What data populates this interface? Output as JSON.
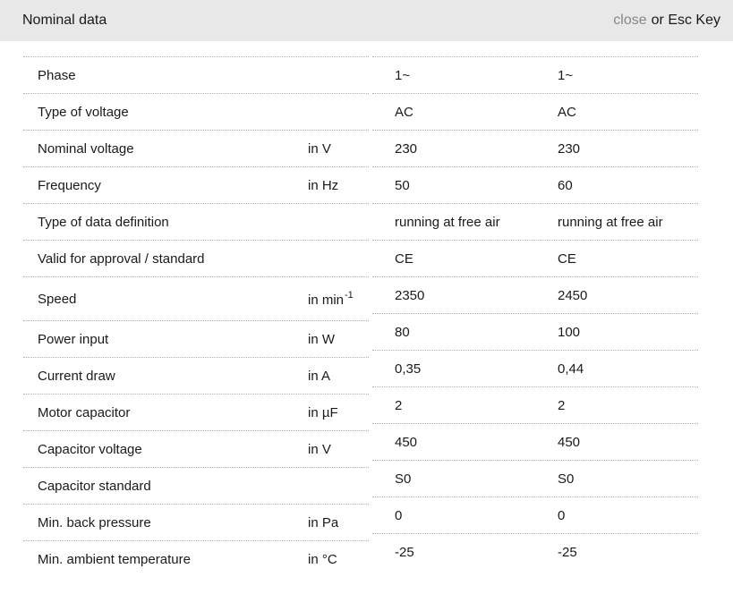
{
  "header": {
    "title": "Nominal data",
    "close_label": "close",
    "esc_text": "or Esc Key"
  },
  "colors": {
    "header_bg": "#e8e8e8",
    "divider": "#b0b0b0",
    "text": "#1a1a1a",
    "close_link": "#878787"
  },
  "table": {
    "rows": [
      {
        "label": "Phase",
        "unit": "",
        "unit_sup": "",
        "values": [
          "1~",
          "1~"
        ]
      },
      {
        "label": "Type of voltage",
        "unit": "",
        "unit_sup": "",
        "values": [
          "AC",
          "AC"
        ]
      },
      {
        "label": "Nominal voltage",
        "unit": "in V",
        "unit_sup": "",
        "values": [
          "230",
          "230"
        ]
      },
      {
        "label": "Frequency",
        "unit": "in Hz",
        "unit_sup": "",
        "values": [
          "50",
          "60"
        ]
      },
      {
        "label": "Type of data definition",
        "unit": "",
        "unit_sup": "",
        "values": [
          "running at free air",
          "running at free air"
        ]
      },
      {
        "label": "Valid for approval / standard",
        "unit": "",
        "unit_sup": "",
        "values": [
          "CE",
          "CE"
        ]
      },
      {
        "label": "Speed",
        "unit": "in min",
        "unit_sup": "-1",
        "values": [
          "2350",
          "2450"
        ]
      },
      {
        "label": "Power input",
        "unit": "in W",
        "unit_sup": "",
        "values": [
          "80",
          "100"
        ]
      },
      {
        "label": "Current draw",
        "unit": "in A",
        "unit_sup": "",
        "values": [
          "0,35",
          "0,44"
        ]
      },
      {
        "label": "Motor capacitor",
        "unit": "in µF",
        "unit_sup": "",
        "values": [
          "2",
          "2"
        ]
      },
      {
        "label": "Capacitor voltage",
        "unit": "in V",
        "unit_sup": "",
        "values": [
          "450",
          "450"
        ]
      },
      {
        "label": "Capacitor standard",
        "unit": "",
        "unit_sup": "",
        "values": [
          "S0",
          "S0"
        ]
      },
      {
        "label": "Min. back pressure",
        "unit": "in Pa",
        "unit_sup": "",
        "values": [
          "0",
          "0"
        ]
      },
      {
        "label": "Min. ambient temperature",
        "unit": "in °C",
        "unit_sup": "",
        "values": [
          "-25",
          "-25"
        ]
      }
    ]
  }
}
